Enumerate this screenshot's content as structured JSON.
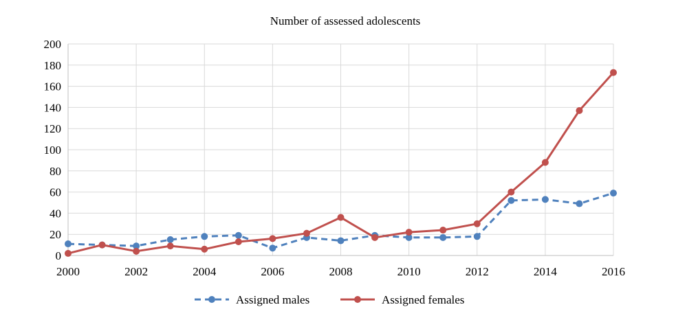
{
  "chart_data": {
    "type": "line",
    "title": "Number of assessed adolescents",
    "xlabel": "",
    "ylabel": "",
    "x": [
      2000,
      2001,
      2002,
      2003,
      2004,
      2005,
      2006,
      2007,
      2008,
      2009,
      2010,
      2011,
      2012,
      2013,
      2014,
      2015,
      2016
    ],
    "xlim": [
      2000,
      2016
    ],
    "ylim": [
      0,
      200
    ],
    "xticks": [
      "2000",
      "2002",
      "2004",
      "2006",
      "2008",
      "2010",
      "2012",
      "2014",
      "2016"
    ],
    "yticks": [
      "0",
      "20",
      "40",
      "60",
      "80",
      "100",
      "120",
      "140",
      "160",
      "180",
      "200"
    ],
    "grid": true,
    "legend_position": "bottom",
    "series": [
      {
        "name": "Assigned males",
        "color": "#4f81bd",
        "style": "dashed",
        "values": [
          11,
          10,
          9,
          15,
          18,
          19,
          7,
          17,
          14,
          19,
          17,
          17,
          18,
          52,
          53,
          49,
          59
        ]
      },
      {
        "name": "Assigned females",
        "color": "#c0504d",
        "style": "solid",
        "values": [
          2,
          10,
          4,
          9,
          6,
          13,
          16,
          21,
          36,
          17,
          22,
          24,
          30,
          60,
          88,
          137,
          173
        ]
      }
    ]
  }
}
